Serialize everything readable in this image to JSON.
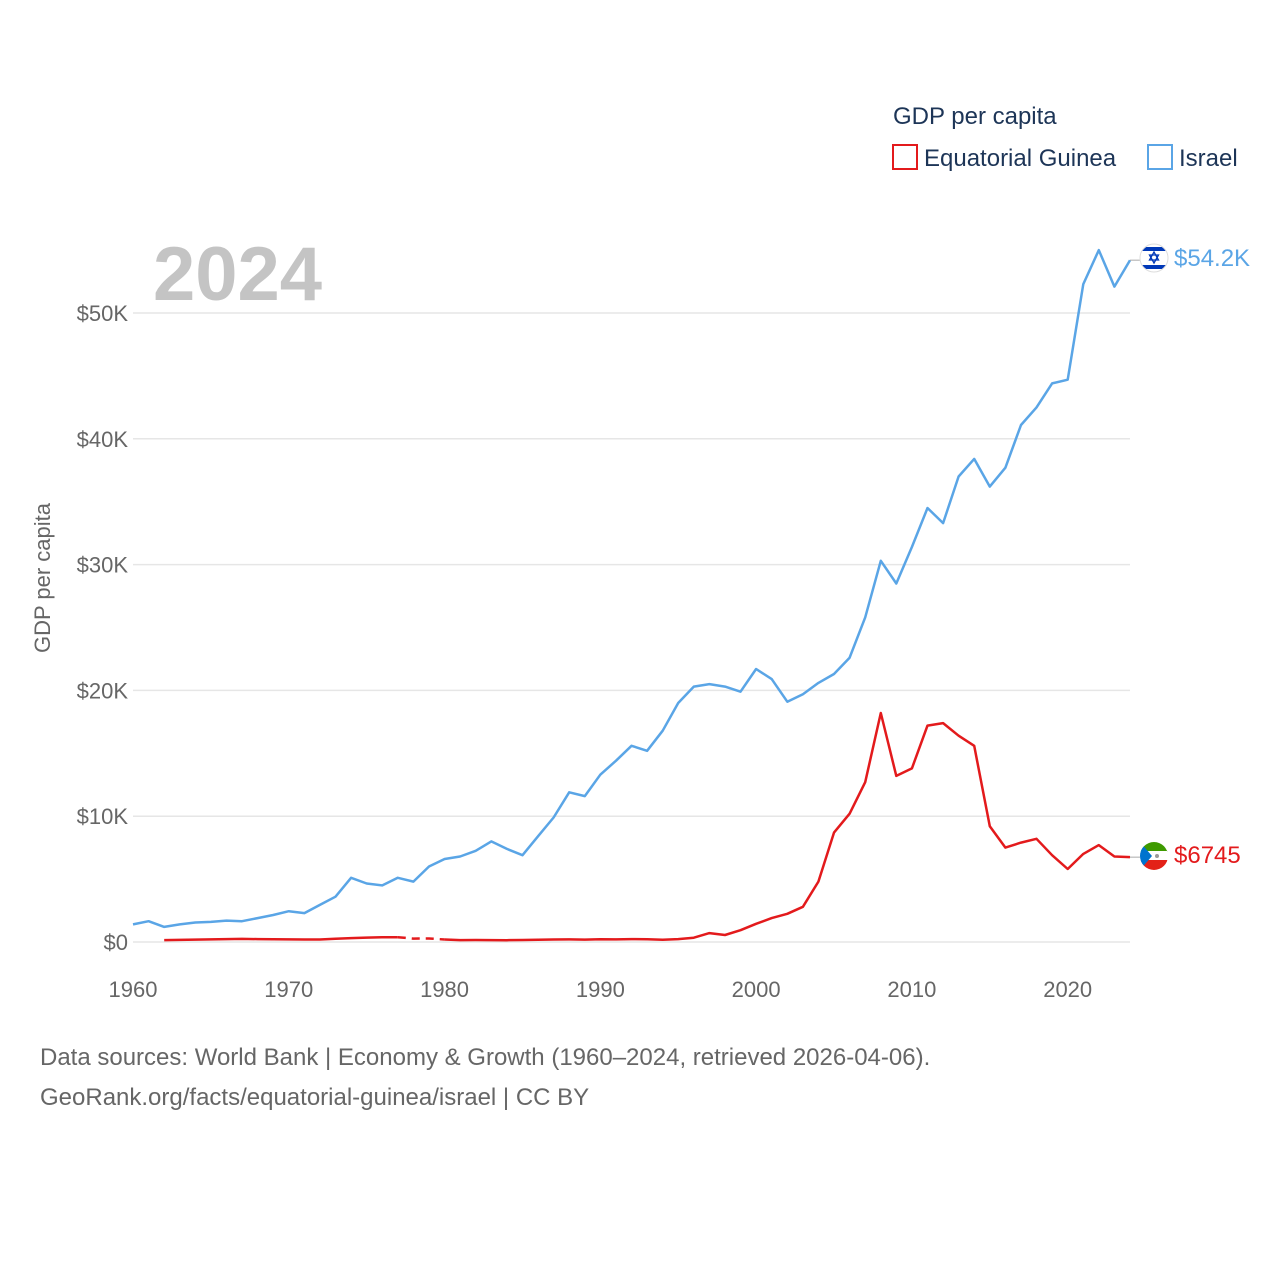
{
  "chart_data": {
    "type": "line",
    "year_label": "2024",
    "ylabel": "GDP per capita",
    "legend_title": "GDP per capita",
    "x_ticks": [
      1960,
      1970,
      1980,
      1990,
      2000,
      2010,
      2020
    ],
    "xlim": [
      1960,
      2024
    ],
    "y_ticks": [
      {
        "value": 0,
        "label": "$0"
      },
      {
        "value": 10000,
        "label": "$10K"
      },
      {
        "value": 20000,
        "label": "$20K"
      },
      {
        "value": 30000,
        "label": "$30K"
      },
      {
        "value": 40000,
        "label": "$40K"
      },
      {
        "value": 50000,
        "label": "$50K"
      }
    ],
    "ylim": [
      0,
      55000
    ],
    "series": [
      {
        "name": "Equatorial Guinea",
        "color": "#e31a1c",
        "end_label": "$6745",
        "flag": "equatorial-guinea-flag",
        "x": [
          1962,
          1963,
          1964,
          1965,
          1966,
          1967,
          1968,
          1969,
          1970,
          1971,
          1972,
          1973,
          1974,
          1975,
          1976,
          1977,
          1978,
          1979,
          1980,
          1981,
          1982,
          1983,
          1984,
          1985,
          1986,
          1987,
          1988,
          1989,
          1990,
          1991,
          1992,
          1993,
          1994,
          1995,
          1996,
          1997,
          1998,
          1999,
          2000,
          2001,
          2002,
          2003,
          2004,
          2005,
          2006,
          2007,
          2008,
          2009,
          2010,
          2011,
          2012,
          2013,
          2014,
          2015,
          2016,
          2017,
          2018,
          2019,
          2020,
          2021,
          2022,
          2023,
          2024
        ],
        "values": [
          150,
          170,
          190,
          210,
          230,
          250,
          230,
          220,
          210,
          200,
          200,
          260,
          310,
          350,
          380,
          380,
          null,
          null,
          200,
          150,
          160,
          150,
          140,
          160,
          180,
          200,
          210,
          190,
          220,
          210,
          230,
          220,
          180,
          230,
          340,
          710,
          560,
          940,
          1450,
          1900,
          2240,
          2800,
          4800,
          8700,
          10200,
          12700,
          18200,
          13200,
          13800,
          17200,
          17400,
          16400,
          15600,
          9200,
          7500,
          7900,
          8200,
          6900,
          5800,
          7000,
          7700,
          6800,
          6745
        ],
        "gap_x": [
          1977,
          1978,
          1979,
          1980
        ],
        "gap_values": [
          380,
          270,
          280,
          200
        ]
      },
      {
        "name": "Israel",
        "color": "#5aa5e6",
        "end_label": "$54.2K",
        "flag": "israel-flag",
        "x": [
          1960,
          1961,
          1962,
          1963,
          1964,
          1965,
          1966,
          1967,
          1968,
          1969,
          1970,
          1971,
          1972,
          1973,
          1974,
          1975,
          1976,
          1977,
          1978,
          1979,
          1980,
          1981,
          1982,
          1983,
          1984,
          1985,
          1986,
          1987,
          1988,
          1989,
          1990,
          1991,
          1992,
          1993,
          1994,
          1995,
          1996,
          1997,
          1998,
          1999,
          2000,
          2001,
          2002,
          2003,
          2004,
          2005,
          2006,
          2007,
          2008,
          2009,
          2010,
          2011,
          2012,
          2013,
          2014,
          2015,
          2016,
          2017,
          2018,
          2019,
          2020,
          2021,
          2022,
          2023,
          2024
        ],
        "values": [
          1400,
          1650,
          1200,
          1400,
          1550,
          1600,
          1700,
          1650,
          1900,
          2150,
          2450,
          2300,
          2950,
          3600,
          5100,
          4650,
          4500,
          5100,
          4800,
          6000,
          6600,
          6800,
          7250,
          8000,
          7400,
          6900,
          8400,
          9900,
          11900,
          11600,
          13300,
          14400,
          15600,
          15200,
          16800,
          19000,
          20300,
          20500,
          20300,
          19900,
          21700,
          20900,
          19100,
          19700,
          20600,
          21300,
          22600,
          25800,
          30300,
          28500,
          31400,
          34500,
          33300,
          37000,
          38400,
          36200,
          37700,
          41100,
          42500,
          44400,
          44700,
          52300,
          55000,
          52100,
          54200
        ]
      }
    ]
  },
  "footer": {
    "line1": "Data sources: World Bank | Economy & Growth (1960–2024, retrieved 2026-04-06).",
    "line2": "GeoRank.org/facts/equatorial-guinea/israel | CC BY"
  }
}
